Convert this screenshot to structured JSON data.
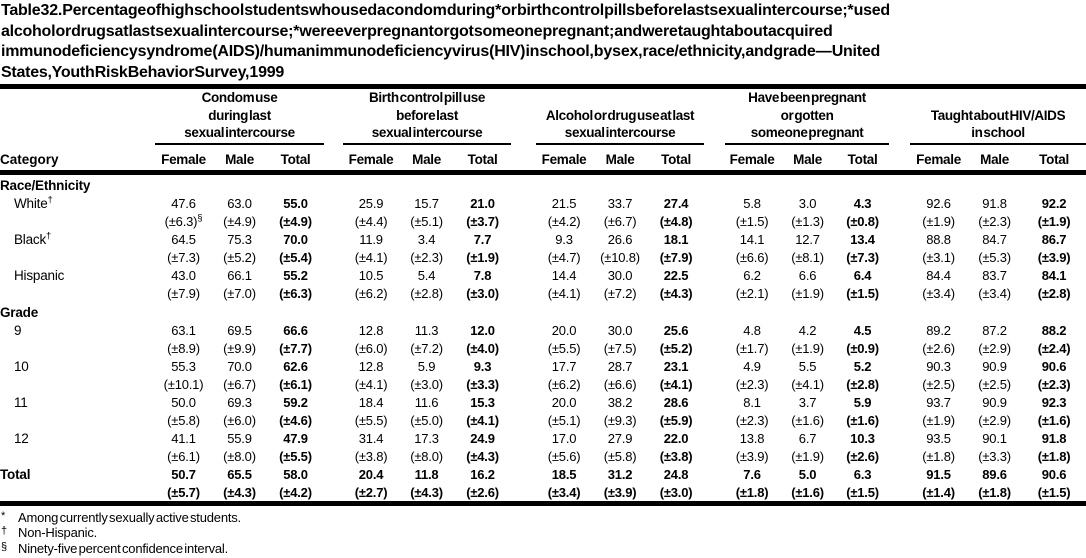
{
  "title_lines": [
    "Table 32. Percentage of high school students who used a condom during* or birth control pills before last sexual intercourse;* used",
    "alcohol or drugs at last sexual intercourse;* were ever pregnant or got someone pregnant; and were taught about acquired",
    "immunodeficiency syndrome (AIDS)/human immunodeficiency virus (HIV) in school, by sex, race/ethnicity, and grade — United",
    "States, Youth Risk Behavior Survey, 1999"
  ],
  "header": {
    "category_label": "Category",
    "sub_columns": [
      "Female",
      "Male",
      "Total"
    ],
    "groups": [
      {
        "lines": [
          "Condom use",
          "during last",
          "sexual intercourse"
        ]
      },
      {
        "lines": [
          "Birth control pill use",
          "before last",
          "sexual intercourse"
        ]
      },
      {
        "lines": [
          "Alcohol or drug use at last",
          "sexual intercourse"
        ]
      },
      {
        "lines": [
          "Have been pregnant",
          "or gotten",
          "someone pregnant"
        ]
      },
      {
        "lines": [
          "Taught about HIV/AIDS",
          "in school"
        ]
      }
    ]
  },
  "sections": [
    {
      "header": "Race/Ethnicity",
      "rows": [
        {
          "label": "White",
          "label_sup": "†",
          "ci_sup": "§",
          "values": [
            "47.6",
            "63.0",
            "55.0",
            "25.9",
            "15.7",
            "21.0",
            "21.5",
            "33.7",
            "27.4",
            "5.8",
            "3.0",
            "4.3",
            "92.6",
            "91.8",
            "92.2"
          ],
          "ci": [
            "(±6.3)",
            "(±4.9)",
            "(±4.9)",
            "(±4.4)",
            "(±5.1)",
            "(±3.7)",
            "(±4.2)",
            "(±6.7)",
            "(±4.8)",
            "(±1.5)",
            "(±1.3)",
            "(±0.8)",
            "(±1.9)",
            "(±2.3)",
            "(±1.9)"
          ]
        },
        {
          "label": "Black",
          "label_sup": "†",
          "ci_sup": "",
          "values": [
            "64.5",
            "75.3",
            "70.0",
            "11.9",
            "3.4",
            "7.7",
            "9.3",
            "26.6",
            "18.1",
            "14.1",
            "12.7",
            "13.4",
            "88.8",
            "84.7",
            "86.7"
          ],
          "ci": [
            "(±7.3)",
            "(±5.2)",
            "(±5.4)",
            "(±4.1)",
            "(±2.3)",
            "(±1.9)",
            "(±4.7)",
            "(±10.8)",
            "(±7.9)",
            "(±6.6)",
            "(±8.1)",
            "(±7.3)",
            "(±3.1)",
            "(±5.3)",
            "(±3.9)"
          ]
        },
        {
          "label": "Hispanic",
          "label_sup": "",
          "ci_sup": "",
          "values": [
            "43.0",
            "66.1",
            "55.2",
            "10.5",
            "5.4",
            "7.8",
            "14.4",
            "30.0",
            "22.5",
            "6.2",
            "6.6",
            "6.4",
            "84.4",
            "83.7",
            "84.1"
          ],
          "ci": [
            "(±7.9)",
            "(±7.0)",
            "(±6.3)",
            "(±6.2)",
            "(±2.8)",
            "(±3.0)",
            "(±4.1)",
            "(±7.2)",
            "(±4.3)",
            "(±2.1)",
            "(±1.9)",
            "(±1.5)",
            "(±3.4)",
            "(±3.4)",
            "(±2.8)"
          ]
        }
      ]
    },
    {
      "header": "Grade",
      "rows": [
        {
          "label": "9",
          "label_sup": "",
          "ci_sup": "",
          "values": [
            "63.1",
            "69.5",
            "66.6",
            "12.8",
            "11.3",
            "12.0",
            "20.0",
            "30.0",
            "25.6",
            "4.8",
            "4.2",
            "4.5",
            "89.2",
            "87.2",
            "88.2"
          ],
          "ci": [
            "(±8.9)",
            "(±9.9)",
            "(±7.7)",
            "(±6.0)",
            "(±7.2)",
            "(±4.0)",
            "(±5.5)",
            "(±7.5)",
            "(±5.2)",
            "(±1.7)",
            "(±1.9)",
            "(±0.9)",
            "(±2.6)",
            "(±2.9)",
            "(±2.4)"
          ]
        },
        {
          "label": "10",
          "label_sup": "",
          "ci_sup": "",
          "values": [
            "55.3",
            "70.0",
            "62.6",
            "12.8",
            "5.9",
            "9.3",
            "17.7",
            "28.7",
            "23.1",
            "4.9",
            "5.5",
            "5.2",
            "90.3",
            "90.9",
            "90.6"
          ],
          "ci": [
            "(±10.1)",
            "(±6.7)",
            "(±6.1)",
            "(±4.1)",
            "(±3.0)",
            "(±3.3)",
            "(±6.2)",
            "(±6.6)",
            "(±4.1)",
            "(±2.3)",
            "(±4.1)",
            "(±2.8)",
            "(±2.5)",
            "(±2.5)",
            "(±2.3)"
          ]
        },
        {
          "label": "11",
          "label_sup": "",
          "ci_sup": "",
          "values": [
            "50.0",
            "69.3",
            "59.2",
            "18.4",
            "11.6",
            "15.3",
            "20.0",
            "38.2",
            "28.6",
            "8.1",
            "3.7",
            "5.9",
            "93.7",
            "90.9",
            "92.3"
          ],
          "ci": [
            "(±5.8)",
            "(±6.0)",
            "(±4.6)",
            "(±5.5)",
            "(±5.0)",
            "(±4.1)",
            "(±5.1)",
            "(±9.3)",
            "(±5.9)",
            "(±2.3)",
            "(±1.6)",
            "(±1.6)",
            "(±1.9)",
            "(±2.9)",
            "(±1.6)"
          ]
        },
        {
          "label": "12",
          "label_sup": "",
          "ci_sup": "",
          "values": [
            "41.1",
            "55.9",
            "47.9",
            "31.4",
            "17.3",
            "24.9",
            "17.0",
            "27.9",
            "22.0",
            "13.8",
            "6.7",
            "10.3",
            "93.5",
            "90.1",
            "91.8"
          ],
          "ci": [
            "(±6.1)",
            "(±8.0)",
            "(±5.5)",
            "(±3.8)",
            "(±8.0)",
            "(±4.3)",
            "(±5.6)",
            "(±5.8)",
            "(±3.8)",
            "(±3.9)",
            "(±1.9)",
            "(±2.6)",
            "(±1.8)",
            "(±3.3)",
            "(±1.8)"
          ]
        }
      ]
    }
  ],
  "total_row": {
    "label": "Total",
    "label_sup": "",
    "ci_sup": "",
    "values": [
      "50.7",
      "65.5",
      "58.0",
      "20.4",
      "11.8",
      "16.2",
      "18.5",
      "31.2",
      "24.8",
      "7.6",
      "5.0",
      "6.3",
      "91.5",
      "89.6",
      "90.6"
    ],
    "ci": [
      "(±5.7)",
      "(±4.3)",
      "(±4.2)",
      "(±2.7)",
      "(±4.3)",
      "(±2.6)",
      "(±3.4)",
      "(±3.9)",
      "(±3.0)",
      "(±1.8)",
      "(±1.6)",
      "(±1.5)",
      "(±1.4)",
      "(±1.8)",
      "(±1.5)"
    ]
  },
  "footnotes": [
    {
      "symbol": "*",
      "text": "Among currently sexually active students."
    },
    {
      "symbol": "†",
      "text": "Non-Hispanic."
    },
    {
      "symbol": "§",
      "text": "Ninety-five percent confidence interval."
    }
  ]
}
